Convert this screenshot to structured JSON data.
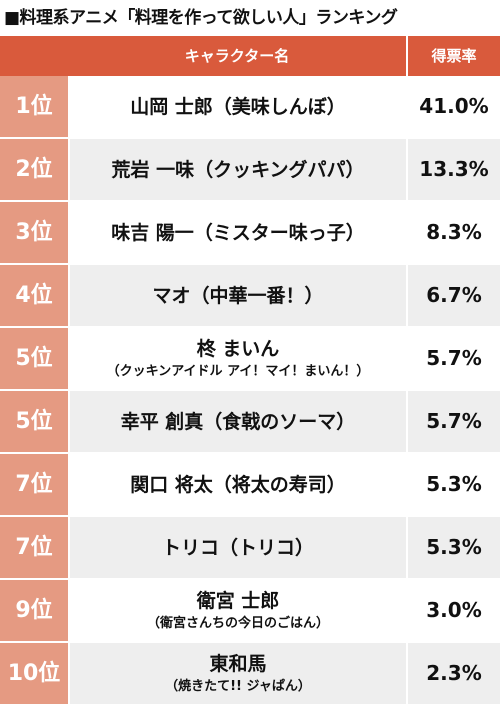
{
  "title": "■料理系アニメ「料理を作って欲しい人」ランキング",
  "header": {
    "name": "キャラクター名",
    "percent": "得票率"
  },
  "rows": [
    {
      "rank": "1位",
      "name": "山岡 士郎（美味しんぼ）",
      "sub": "",
      "percent": "41.0%"
    },
    {
      "rank": "2位",
      "name": "荒岩 一味（クッキングパパ）",
      "sub": "",
      "percent": "13.3%"
    },
    {
      "rank": "3位",
      "name": "味吉 陽一（ミスター味っ子）",
      "sub": "",
      "percent": "8.3%"
    },
    {
      "rank": "4位",
      "name": "マオ（中華一番！）",
      "sub": "",
      "percent": "6.7%"
    },
    {
      "rank": "5位",
      "name": "柊 まいん",
      "sub": "（クッキンアイドル アイ！マイ！まいん！）",
      "percent": "5.7%"
    },
    {
      "rank": "5位",
      "name": "幸平 創真（食戟のソーマ）",
      "sub": "",
      "percent": "5.7%"
    },
    {
      "rank": "7位",
      "name": "関口 将太（将太の寿司）",
      "sub": "",
      "percent": "5.3%"
    },
    {
      "rank": "7位",
      "name": "トリコ（トリコ）",
      "sub": "",
      "percent": "5.3%"
    },
    {
      "rank": "9位",
      "name": "衛宮 士郎",
      "sub": "（衛宮さんちの今日のごはん）",
      "percent": "3.0%"
    },
    {
      "rank": "10位",
      "name": "東和馬",
      "sub": "（焼きたて!! ジャぱん）",
      "percent": "2.3%"
    }
  ]
}
